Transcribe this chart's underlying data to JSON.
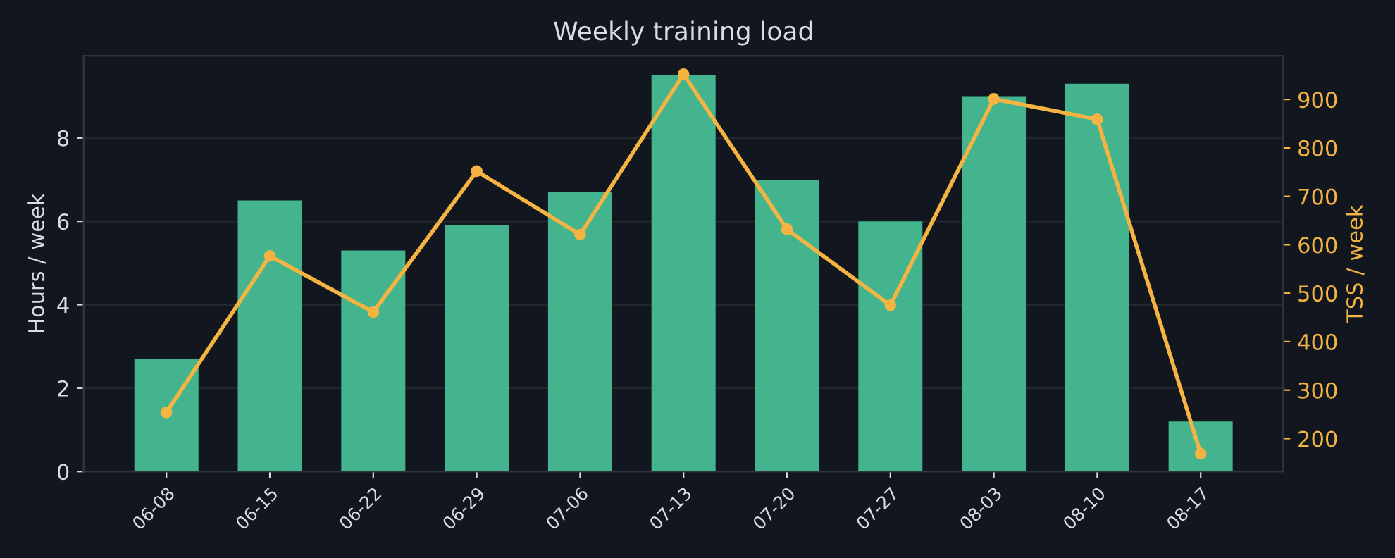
{
  "chart_data": {
    "type": "bar",
    "title": "Weekly training load",
    "ylabel": "Hours / week",
    "y2label": "TSS / week",
    "categories": [
      "06-08",
      "06-15",
      "06-22",
      "06-29",
      "07-06",
      "07-13",
      "07-20",
      "07-27",
      "08-03",
      "08-10",
      "08-17"
    ],
    "series": [
      {
        "color": "#43b48e",
        "values": [
          2.7,
          6.5,
          5.3,
          5.9,
          6.7,
          9.5,
          7.0,
          6.0,
          9.0,
          9.3,
          1.2
        ]
      },
      {
        "type": "line",
        "axis": "y2",
        "color": "#f5b342",
        "marker": "circle",
        "values": [
          254,
          577,
          461,
          752,
          621,
          952,
          632,
          475,
          901,
          859,
          169
        ]
      }
    ],
    "ylim": [
      0,
      9.97
    ],
    "yticks": [
      0,
      2,
      4,
      6,
      8
    ],
    "y2lim": [
      132,
      990
    ],
    "y2ticks": [
      200,
      300,
      400,
      500,
      600,
      700,
      800,
      900
    ],
    "grid": "y"
  }
}
